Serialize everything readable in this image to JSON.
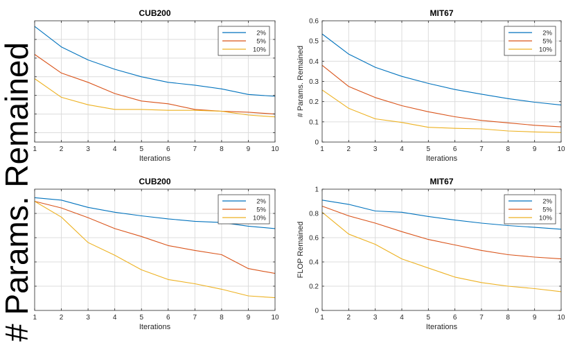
{
  "figure": {
    "side_label": "# Params. Remained"
  },
  "colors": {
    "s2": "#0072BD",
    "s5": "#D95319",
    "s10": "#EDB120",
    "grid": "#dcdcdc",
    "axis": "#262626"
  },
  "chart_data": [
    {
      "type": "line",
      "title": "CUB200",
      "xlabel": "Iterations",
      "ylabel": "",
      "xlim": [
        1,
        10
      ],
      "ylim": [
        0.35,
        1.0
      ],
      "yticks": [
        0.4,
        0.5,
        0.6,
        0.7,
        0.8,
        0.9
      ],
      "show_ytick_labels": false,
      "x": [
        1,
        2,
        3,
        4,
        5,
        6,
        7,
        8,
        9,
        10
      ],
      "legend": "top-right",
      "series": [
        {
          "name": "2%",
          "color_key": "s2",
          "values": [
            0.97,
            0.86,
            0.79,
            0.74,
            0.7,
            0.67,
            0.655,
            0.635,
            0.605,
            0.595
          ]
        },
        {
          "name": "5%",
          "color_key": "s5",
          "values": [
            0.82,
            0.72,
            0.67,
            0.61,
            0.57,
            0.555,
            0.525,
            0.515,
            0.51,
            0.5
          ]
        },
        {
          "name": "10%",
          "color_key": "s10",
          "values": [
            0.69,
            0.59,
            0.55,
            0.525,
            0.525,
            0.52,
            0.52,
            0.515,
            0.495,
            0.485
          ]
        }
      ]
    },
    {
      "type": "line",
      "title": "MIT67",
      "xlabel": "Iterations",
      "ylabel": "# Params. Remained",
      "xlim": [
        1,
        10
      ],
      "ylim": [
        0,
        0.6
      ],
      "yticks": [
        0,
        0.1,
        0.2,
        0.3,
        0.4,
        0.5,
        0.6
      ],
      "show_ytick_labels": true,
      "x": [
        1,
        2,
        3,
        4,
        5,
        6,
        7,
        8,
        9,
        10
      ],
      "legend": "top-right",
      "series": [
        {
          "name": "2%",
          "color_key": "s2",
          "values": [
            0.535,
            0.435,
            0.37,
            0.325,
            0.29,
            0.26,
            0.237,
            0.215,
            0.197,
            0.183
          ]
        },
        {
          "name": "5%",
          "color_key": "s5",
          "values": [
            0.38,
            0.275,
            0.22,
            0.18,
            0.15,
            0.125,
            0.107,
            0.095,
            0.083,
            0.075
          ]
        },
        {
          "name": "10%",
          "color_key": "s10",
          "values": [
            0.258,
            0.167,
            0.115,
            0.097,
            0.073,
            0.068,
            0.065,
            0.055,
            0.05,
            0.047
          ]
        }
      ]
    },
    {
      "type": "line",
      "title": "CUB200",
      "xlabel": "Iterations",
      "ylabel": "",
      "xlim": [
        1,
        10
      ],
      "ylim": [
        0.0,
        1.0
      ],
      "yticks": [
        0.2,
        0.4,
        0.6,
        0.8
      ],
      "show_ytick_labels": false,
      "x": [
        1,
        2,
        3,
        4,
        5,
        6,
        7,
        8,
        9,
        10
      ],
      "legend": "top-right",
      "series": [
        {
          "name": "2%",
          "color_key": "s2",
          "values": [
            0.93,
            0.91,
            0.85,
            0.81,
            0.78,
            0.755,
            0.735,
            0.725,
            0.695,
            0.675
          ]
        },
        {
          "name": "5%",
          "color_key": "s5",
          "values": [
            0.9,
            0.845,
            0.765,
            0.675,
            0.61,
            0.535,
            0.495,
            0.46,
            0.345,
            0.305
          ]
        },
        {
          "name": "10%",
          "color_key": "s10",
          "values": [
            0.9,
            0.77,
            0.56,
            0.455,
            0.335,
            0.255,
            0.22,
            0.175,
            0.12,
            0.105
          ]
        }
      ]
    },
    {
      "type": "line",
      "title": "MIT67",
      "xlabel": "Iterations",
      "ylabel": "FLOP Remained",
      "xlim": [
        1,
        10
      ],
      "ylim": [
        0,
        1
      ],
      "yticks": [
        0,
        0.2,
        0.4,
        0.6,
        0.8,
        1
      ],
      "show_ytick_labels": true,
      "x": [
        1,
        2,
        3,
        4,
        5,
        6,
        7,
        8,
        9,
        10
      ],
      "legend": "top-right",
      "series": [
        {
          "name": "2%",
          "color_key": "s2",
          "values": [
            0.91,
            0.875,
            0.82,
            0.81,
            0.775,
            0.745,
            0.72,
            0.7,
            0.685,
            0.67
          ]
        },
        {
          "name": "5%",
          "color_key": "s5",
          "values": [
            0.86,
            0.78,
            0.72,
            0.65,
            0.585,
            0.54,
            0.495,
            0.46,
            0.44,
            0.425
          ]
        },
        {
          "name": "10%",
          "color_key": "s10",
          "values": [
            0.81,
            0.63,
            0.545,
            0.425,
            0.35,
            0.275,
            0.23,
            0.2,
            0.18,
            0.155
          ]
        }
      ]
    }
  ]
}
